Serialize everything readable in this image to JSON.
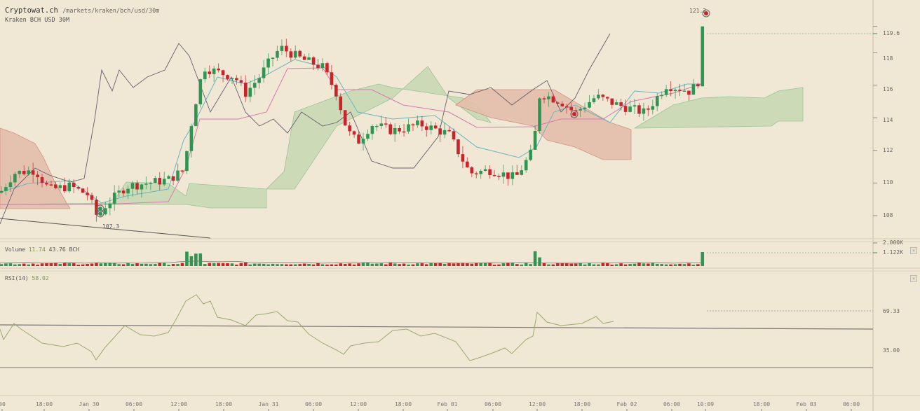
{
  "header": {
    "site": "Cryptowat.ch",
    "path": "/markets/kraken/bch/usd/30m",
    "market": "Kraken BCH USD 30M"
  },
  "colors": {
    "background": "#f0e7d4",
    "up": "#2e9552",
    "down": "#cc2229",
    "tenkan": "#6bb5c0",
    "kijun": "#d97ab0",
    "chikou": "#666070",
    "cloud_bull": "#c7d8b4",
    "cloud_bear": "#e4bfab",
    "rsi_line": "#9aaa70"
  },
  "volume": {
    "label": "Volume",
    "value1": "11.74",
    "value2": "43.76",
    "unit": "BCH",
    "axis": [
      "2.000K",
      "1.122K"
    ]
  },
  "rsi": {
    "label": "RSI(14)",
    "value": "58.02",
    "axis": [
      "69.33",
      "35.00"
    ]
  },
  "price_axis": [
    "119.6",
    "118",
    "116",
    "114",
    "112",
    "110",
    "108"
  ],
  "annotations": {
    "high": "121.2",
    "low": "107.3"
  },
  "x_axis": [
    "00",
    "18:00",
    "Jan 30",
    "06:00",
    "12:00",
    "18:00",
    "Jan 31",
    "06:00",
    "12:00",
    "18:00",
    "Feb 01",
    "06:00",
    "12:00",
    "18:00",
    "Feb 02",
    "06:00",
    "10:09",
    "18:00",
    "Feb 03",
    "06:00"
  ],
  "chart_data": {
    "type": "candlestick",
    "title": "Kraken BCH USD 30M",
    "xlabel": "",
    "ylabel": "USD",
    "ylim": [
      106.8,
      121.8
    ],
    "x_ticks": [
      "18:00",
      "Jan 30",
      "06:00",
      "12:00",
      "18:00",
      "Jan 31",
      "06:00",
      "12:00",
      "18:00",
      "Feb 01",
      "06:00",
      "12:00",
      "18:00",
      "Feb 02",
      "06:00",
      "10:09",
      "18:00",
      "Feb 03",
      "06:00"
    ],
    "y_ticks": [
      108,
      110,
      112,
      114,
      116,
      118,
      119.6
    ],
    "last_price": 119.6,
    "high_marker": 121.2,
    "low_marker": 107.3,
    "indicators": [
      "Ichimoku Cloud",
      "Volume",
      "RSI(14)"
    ],
    "volume_last": 1122,
    "volume_max_tick": 2000,
    "rsi_last": 58.02,
    "rsi_levels": [
      69.33,
      35.0
    ]
  }
}
